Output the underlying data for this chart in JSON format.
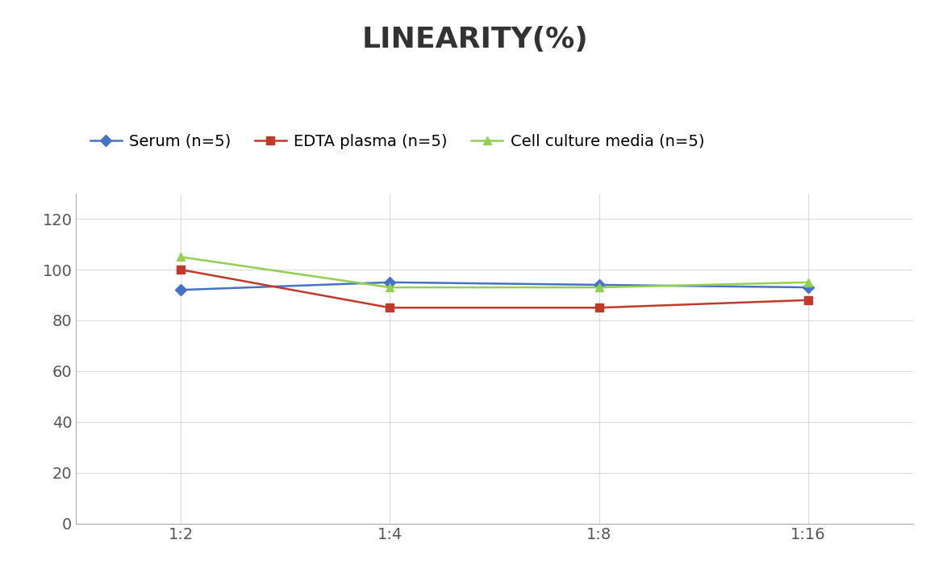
{
  "title": "LINEARITY(%)",
  "x_labels": [
    "1:2",
    "1:4",
    "1:8",
    "1:16"
  ],
  "x_positions": [
    0,
    1,
    2,
    3
  ],
  "series": [
    {
      "name": "Serum (n=5)",
      "values": [
        92,
        95,
        94,
        93
      ],
      "color": "#4472C4",
      "marker": "D",
      "marker_size": 7,
      "linewidth": 1.8
    },
    {
      "name": "EDTA plasma (n=5)",
      "values": [
        100,
        85,
        85,
        88
      ],
      "color": "#C0392B",
      "marker": "s",
      "marker_size": 7,
      "linewidth": 1.8
    },
    {
      "name": "Cell culture media (n=5)",
      "values": [
        105,
        93,
        93,
        95
      ],
      "color": "#92D050",
      "marker": "^",
      "marker_size": 7,
      "linewidth": 1.8
    }
  ],
  "ylim": [
    0,
    130
  ],
  "yticks": [
    0,
    20,
    40,
    60,
    80,
    100,
    120
  ],
  "background_color": "#FFFFFF",
  "title_fontsize": 26,
  "tick_fontsize": 14,
  "legend_fontsize": 14,
  "grid_color": "#D3D3D3",
  "grid_alpha": 0.8
}
